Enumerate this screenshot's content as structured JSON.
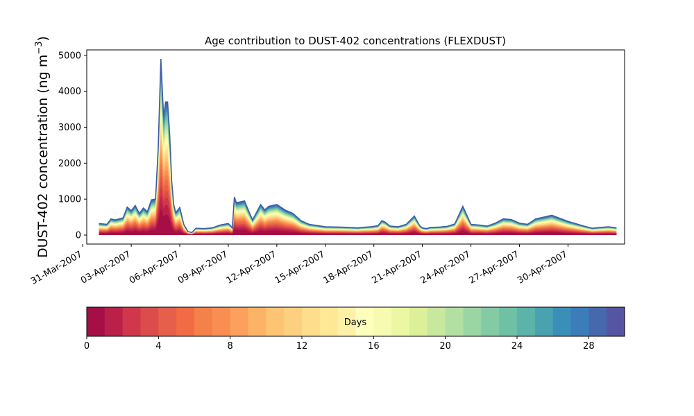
{
  "chart_data": [
    {
      "type": "area",
      "title": "Age contribution to DUST-402 concentrations (FLEXDUST)",
      "ylabel": "DUST-402 concentration (ng m",
      "ylabel_exponent": "−3",
      "ylabel_close": ")",
      "ylim": [
        -250,
        5150
      ],
      "xlim": [
        "2007-03-31T06:00",
        "2007-05-03T12:00"
      ],
      "yticks": [
        0,
        1000,
        2000,
        3000,
        4000,
        5000
      ],
      "xtick_labels": [
        "31-Mar-2007",
        "03-Apr-2007",
        "06-Apr-2007",
        "09-Apr-2007",
        "12-Apr-2007",
        "15-Apr-2007",
        "18-Apr-2007",
        "21-Apr-2007",
        "24-Apr-2007",
        "27-Apr-2007",
        "30-Apr-2007"
      ],
      "xtick_dates": [
        "2007-03-31",
        "2007-04-03",
        "2007-04-06",
        "2007-04-09",
        "2007-04-12",
        "2007-04-15",
        "2007-04-18",
        "2007-04-21",
        "2007-04-24",
        "2007-04-27",
        "2007-04-30"
      ],
      "grid": false,
      "age_bins_days": 30,
      "total_series": {
        "x": [
          "2007-04-01T00:00",
          "2007-04-01T12:00",
          "2007-04-01T18:00",
          "2007-04-02T00:00",
          "2007-04-02T12:00",
          "2007-04-02T18:00",
          "2007-04-03T00:00",
          "2007-04-03T06:00",
          "2007-04-03T12:00",
          "2007-04-03T18:00",
          "2007-04-04T00:00",
          "2007-04-04T06:00",
          "2007-04-04T12:00",
          "2007-04-04T16:00",
          "2007-04-04T20:00",
          "2007-04-05T00:00",
          "2007-04-05T03:00",
          "2007-04-05T06:00",
          "2007-04-05T09:00",
          "2007-04-05T12:00",
          "2007-04-05T15:00",
          "2007-04-05T18:00",
          "2007-04-06T00:00",
          "2007-04-06T06:00",
          "2007-04-06T12:00",
          "2007-04-06T18:00",
          "2007-04-07T00:00",
          "2007-04-07T12:00",
          "2007-04-08T00:00",
          "2007-04-08T12:00",
          "2007-04-09T00:00",
          "2007-04-09T04:00",
          "2007-04-09T06:00",
          "2007-04-09T09:00",
          "2007-04-09T12:00",
          "2007-04-10T00:00",
          "2007-04-10T12:00",
          "2007-04-11T00:00",
          "2007-04-11T06:00",
          "2007-04-11T12:00",
          "2007-04-12T00:00",
          "2007-04-12T12:00",
          "2007-04-13T00:00",
          "2007-04-13T12:00",
          "2007-04-14T00:00",
          "2007-04-15T00:00",
          "2007-04-16T00:00",
          "2007-04-17T00:00",
          "2007-04-17T12:00",
          "2007-04-17T20:00",
          "2007-04-18T06:00",
          "2007-04-18T12:00",
          "2007-04-18T16:00",
          "2007-04-19T00:00",
          "2007-04-19T12:00",
          "2007-04-20T00:00",
          "2007-04-20T12:00",
          "2007-04-20T20:00",
          "2007-04-21T00:00",
          "2007-04-21T06:00",
          "2007-04-21T12:00",
          "2007-04-22T00:00",
          "2007-04-22T12:00",
          "2007-04-23T00:00",
          "2007-04-23T12:00",
          "2007-04-24T00:00",
          "2007-04-24T12:00",
          "2007-04-25T00:00",
          "2007-04-25T12:00",
          "2007-04-26T00:00",
          "2007-04-26T12:00",
          "2007-04-27T00:00",
          "2007-04-27T12:00",
          "2007-04-28T00:00",
          "2007-04-28T12:00",
          "2007-04-29T00:00",
          "2007-04-30T00:00",
          "2007-05-01T00:00",
          "2007-05-01T12:00",
          "2007-05-02T00:00",
          "2007-05-02T12:00",
          "2007-05-03T00:00"
        ],
        "values": [
          320,
          300,
          450,
          420,
          480,
          780,
          680,
          820,
          600,
          750,
          650,
          980,
          1000,
          2400,
          4900,
          3300,
          3700,
          3700,
          2800,
          1500,
          850,
          620,
          770,
          300,
          100,
          70,
          190,
          180,
          200,
          280,
          320,
          250,
          200,
          1060,
          900,
          950,
          420,
          850,
          700,
          800,
          850,
          700,
          600,
          400,
          300,
          230,
          220,
          200,
          220,
          230,
          260,
          400,
          370,
          250,
          230,
          300,
          530,
          260,
          200,
          180,
          210,
          220,
          240,
          310,
          800,
          300,
          280,
          250,
          330,
          450,
          430,
          330,
          300,
          450,
          500,
          550,
          380,
          250,
          190,
          210,
          230,
          200
        ]
      },
      "colorbar": {
        "label": "Days",
        "ticks": [
          0,
          4,
          8,
          12,
          16,
          20,
          24,
          28
        ],
        "range": [
          0,
          30
        ],
        "colormap": "Spectral",
        "colors": [
          "#a50f45",
          "#bb2148",
          "#d0374b",
          "#db4c4b",
          "#e55f4a",
          "#f16c45",
          "#f4804a",
          "#f98e52",
          "#fba05d",
          "#fdb366",
          "#fdc474",
          "#fdd080",
          "#fedd8d",
          "#fee896",
          "#fef1a7",
          "#fefebd",
          "#f6fbb1",
          "#ebf7a2",
          "#dcf099",
          "#c8e89d",
          "#b2e0a2",
          "#9ad5a4",
          "#83cba5",
          "#6fc1a5",
          "#5bb3a9",
          "#4aa2b1",
          "#3a8fb9",
          "#3b7db8",
          "#4669ad",
          "#5555a3"
        ]
      }
    }
  ]
}
